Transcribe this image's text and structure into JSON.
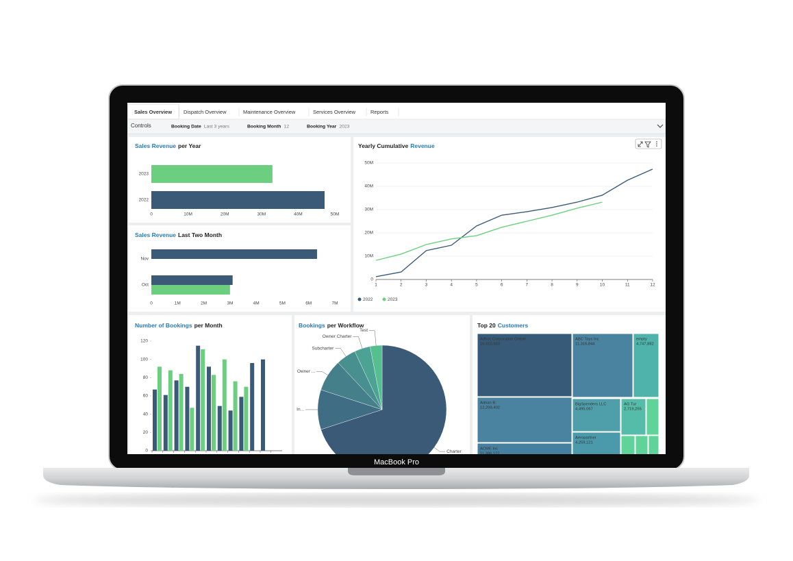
{
  "laptop_label": "MacBook Pro",
  "tabs": [
    "Sales Overview",
    "Dispatch Overview",
    "Maintenance Overview",
    "Services Overview",
    "Reports"
  ],
  "active_tab": 0,
  "controls": {
    "label": "Controls",
    "filters": [
      {
        "name": "Booking Date",
        "value": "Last 3 years"
      },
      {
        "name": "Booking Month",
        "value": "12"
      },
      {
        "name": "Booking Year",
        "value": "2023"
      }
    ]
  },
  "chart_data": [
    {
      "type": "hbar",
      "title": [
        "Sales Revenue",
        "per Year"
      ],
      "title_highlight": 0,
      "categories": [
        "2023",
        "2022"
      ],
      "values": [
        33000000,
        47200000
      ],
      "colors": [
        "#6ccf7f",
        "#3a5a78"
      ],
      "xlim": [
        0,
        50000000
      ],
      "xticks": [
        0,
        {
          "value": 10000000,
          "label": "10M"
        },
        {
          "value": 20000000,
          "label": "20M"
        },
        {
          "value": 30000000,
          "label": "30M"
        },
        {
          "value": 40000000,
          "label": "40M"
        },
        {
          "value": 50000000,
          "label": "50M"
        }
      ]
    },
    {
      "type": "grouped_hbar",
      "title": [
        "Sales Revenue",
        "Last Two Month"
      ],
      "title_highlight": 0,
      "categories": [
        "Nov",
        "Oct"
      ],
      "series": [
        {
          "color": "#3a5a78",
          "values": [
            6320000,
            3100000
          ]
        },
        {
          "color": "#6ccf7f",
          "values": [
            null,
            3000000
          ]
        }
      ],
      "xlim": [
        0,
        7000000
      ],
      "xticks": [
        0,
        {
          "value": 1000000,
          "label": "1M"
        },
        {
          "value": 2000000,
          "label": "2M"
        },
        {
          "value": 3000000,
          "label": "3M"
        },
        {
          "value": 4000000,
          "label": "4M"
        },
        {
          "value": 5000000,
          "label": "5M"
        },
        {
          "value": 6000000,
          "label": "6M"
        },
        {
          "value": 7000000,
          "label": "7M"
        }
      ]
    },
    {
      "type": "line",
      "title": [
        "Yearly Cumulative",
        "Revenue"
      ],
      "title_highlight": 1,
      "x": [
        1,
        2,
        3,
        4,
        5,
        6,
        7,
        8,
        9,
        10,
        11,
        12
      ],
      "series": [
        {
          "name": "2022",
          "color": "#3a5a78",
          "values": [
            1200000,
            3200000,
            12400000,
            14700000,
            23000000,
            27600000,
            29100000,
            30900000,
            33200000,
            36200000,
            42600000,
            47400000
          ]
        },
        {
          "name": "2023",
          "color": "#6ccf7f",
          "values": [
            8200000,
            10900000,
            15000000,
            17400000,
            18800000,
            22400000,
            25000000,
            27600000,
            30600000,
            33200000,
            null,
            null
          ]
        }
      ],
      "xlim": [
        1,
        12
      ],
      "xticks": [
        1,
        2,
        3,
        4,
        5,
        6,
        7,
        8,
        9,
        10,
        11,
        12
      ],
      "ylim": [
        0,
        50000000
      ],
      "yticks": [
        0,
        {
          "value": 10000000,
          "label": "10M"
        },
        {
          "value": 20000000,
          "label": "20M"
        },
        {
          "value": 30000000,
          "label": "30M"
        },
        {
          "value": 40000000,
          "label": "40M"
        },
        {
          "value": 50000000,
          "label": "50M"
        }
      ],
      "grid": true,
      "legend": "bottom-left"
    },
    {
      "type": "bar",
      "title": [
        "Number of Bookings",
        "per Month"
      ],
      "title_highlight": 0,
      "series": [
        {
          "color": "#3a5a78",
          "values": [
            67,
            61,
            77,
            70,
            115,
            92,
            49,
            44,
            59,
            96,
            100
          ]
        },
        {
          "color": "#6ccf7f",
          "values": [
            92,
            88,
            84,
            47,
            111,
            83,
            100,
            76,
            70,
            null,
            null
          ]
        }
      ],
      "ylim": [
        0,
        120
      ],
      "yticks": [
        0,
        20,
        40,
        60,
        80,
        100,
        120
      ]
    },
    {
      "type": "pie",
      "title": [
        "Bookings",
        "per Workflow"
      ],
      "title_highlight": 0,
      "categories": [
        "Charter",
        "In...",
        "Owner ...",
        "Subcharter",
        "Owner Charter",
        "Test"
      ],
      "values": [
        70,
        10,
        8,
        5,
        4,
        3
      ],
      "colors": [
        "#3a5a78",
        "#3f6e84",
        "#447f8a",
        "#48908f",
        "#4ca394",
        "#55bf8f"
      ]
    },
    {
      "type": "treemap",
      "title": [
        "Top 20",
        "Customers"
      ],
      "title_highlight": 1,
      "categories": [
        "Adhoc Corporation GmbH",
        "ABC Toys Inc",
        "empty",
        "Adrian B.",
        "BigSpenders LLC",
        "AG Tur",
        "Aeropartner",
        "ACME Inc"
      ],
      "values": [
        16910923,
        11316844,
        4747882,
        12299402,
        4495067,
        2719255,
        4259121,
        11386122
      ],
      "value_labels": [
        "16,910,923",
        "11,316,844",
        "4,747,882",
        "12,299,402",
        "4,495,067",
        "2,719,255",
        "4,259,121",
        "11,386,122"
      ],
      "colors": [
        "#375a78",
        "#4a83a0",
        "#4fb3ab",
        "#4a83a0",
        "#4f9fab",
        "#54bca8",
        "#4a9aab",
        "#4680a0"
      ]
    }
  ]
}
